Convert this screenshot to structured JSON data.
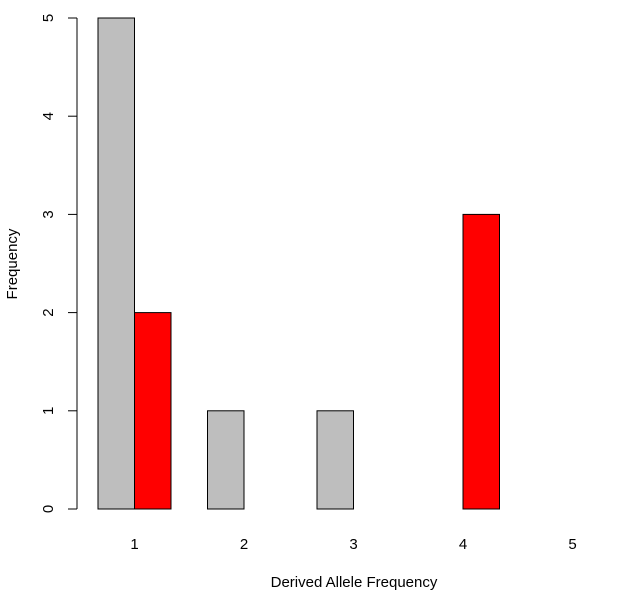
{
  "chart_data": {
    "type": "bar",
    "title": "",
    "xlabel": "Derived Allele Frequency",
    "ylabel": "Frequency",
    "categories": [
      "1",
      "2",
      "3",
      "4",
      "5"
    ],
    "series": [
      {
        "values": [
          5,
          1,
          1,
          0,
          0
        ],
        "color": "#bebebe"
      },
      {
        "values": [
          2,
          0,
          0,
          3,
          0
        ],
        "color": "#ff0000"
      }
    ],
    "ylim": [
      0,
      5
    ],
    "yticks": [
      "0",
      "1",
      "2",
      "3",
      "4",
      "5"
    ],
    "grid": false,
    "legend": "none"
  }
}
